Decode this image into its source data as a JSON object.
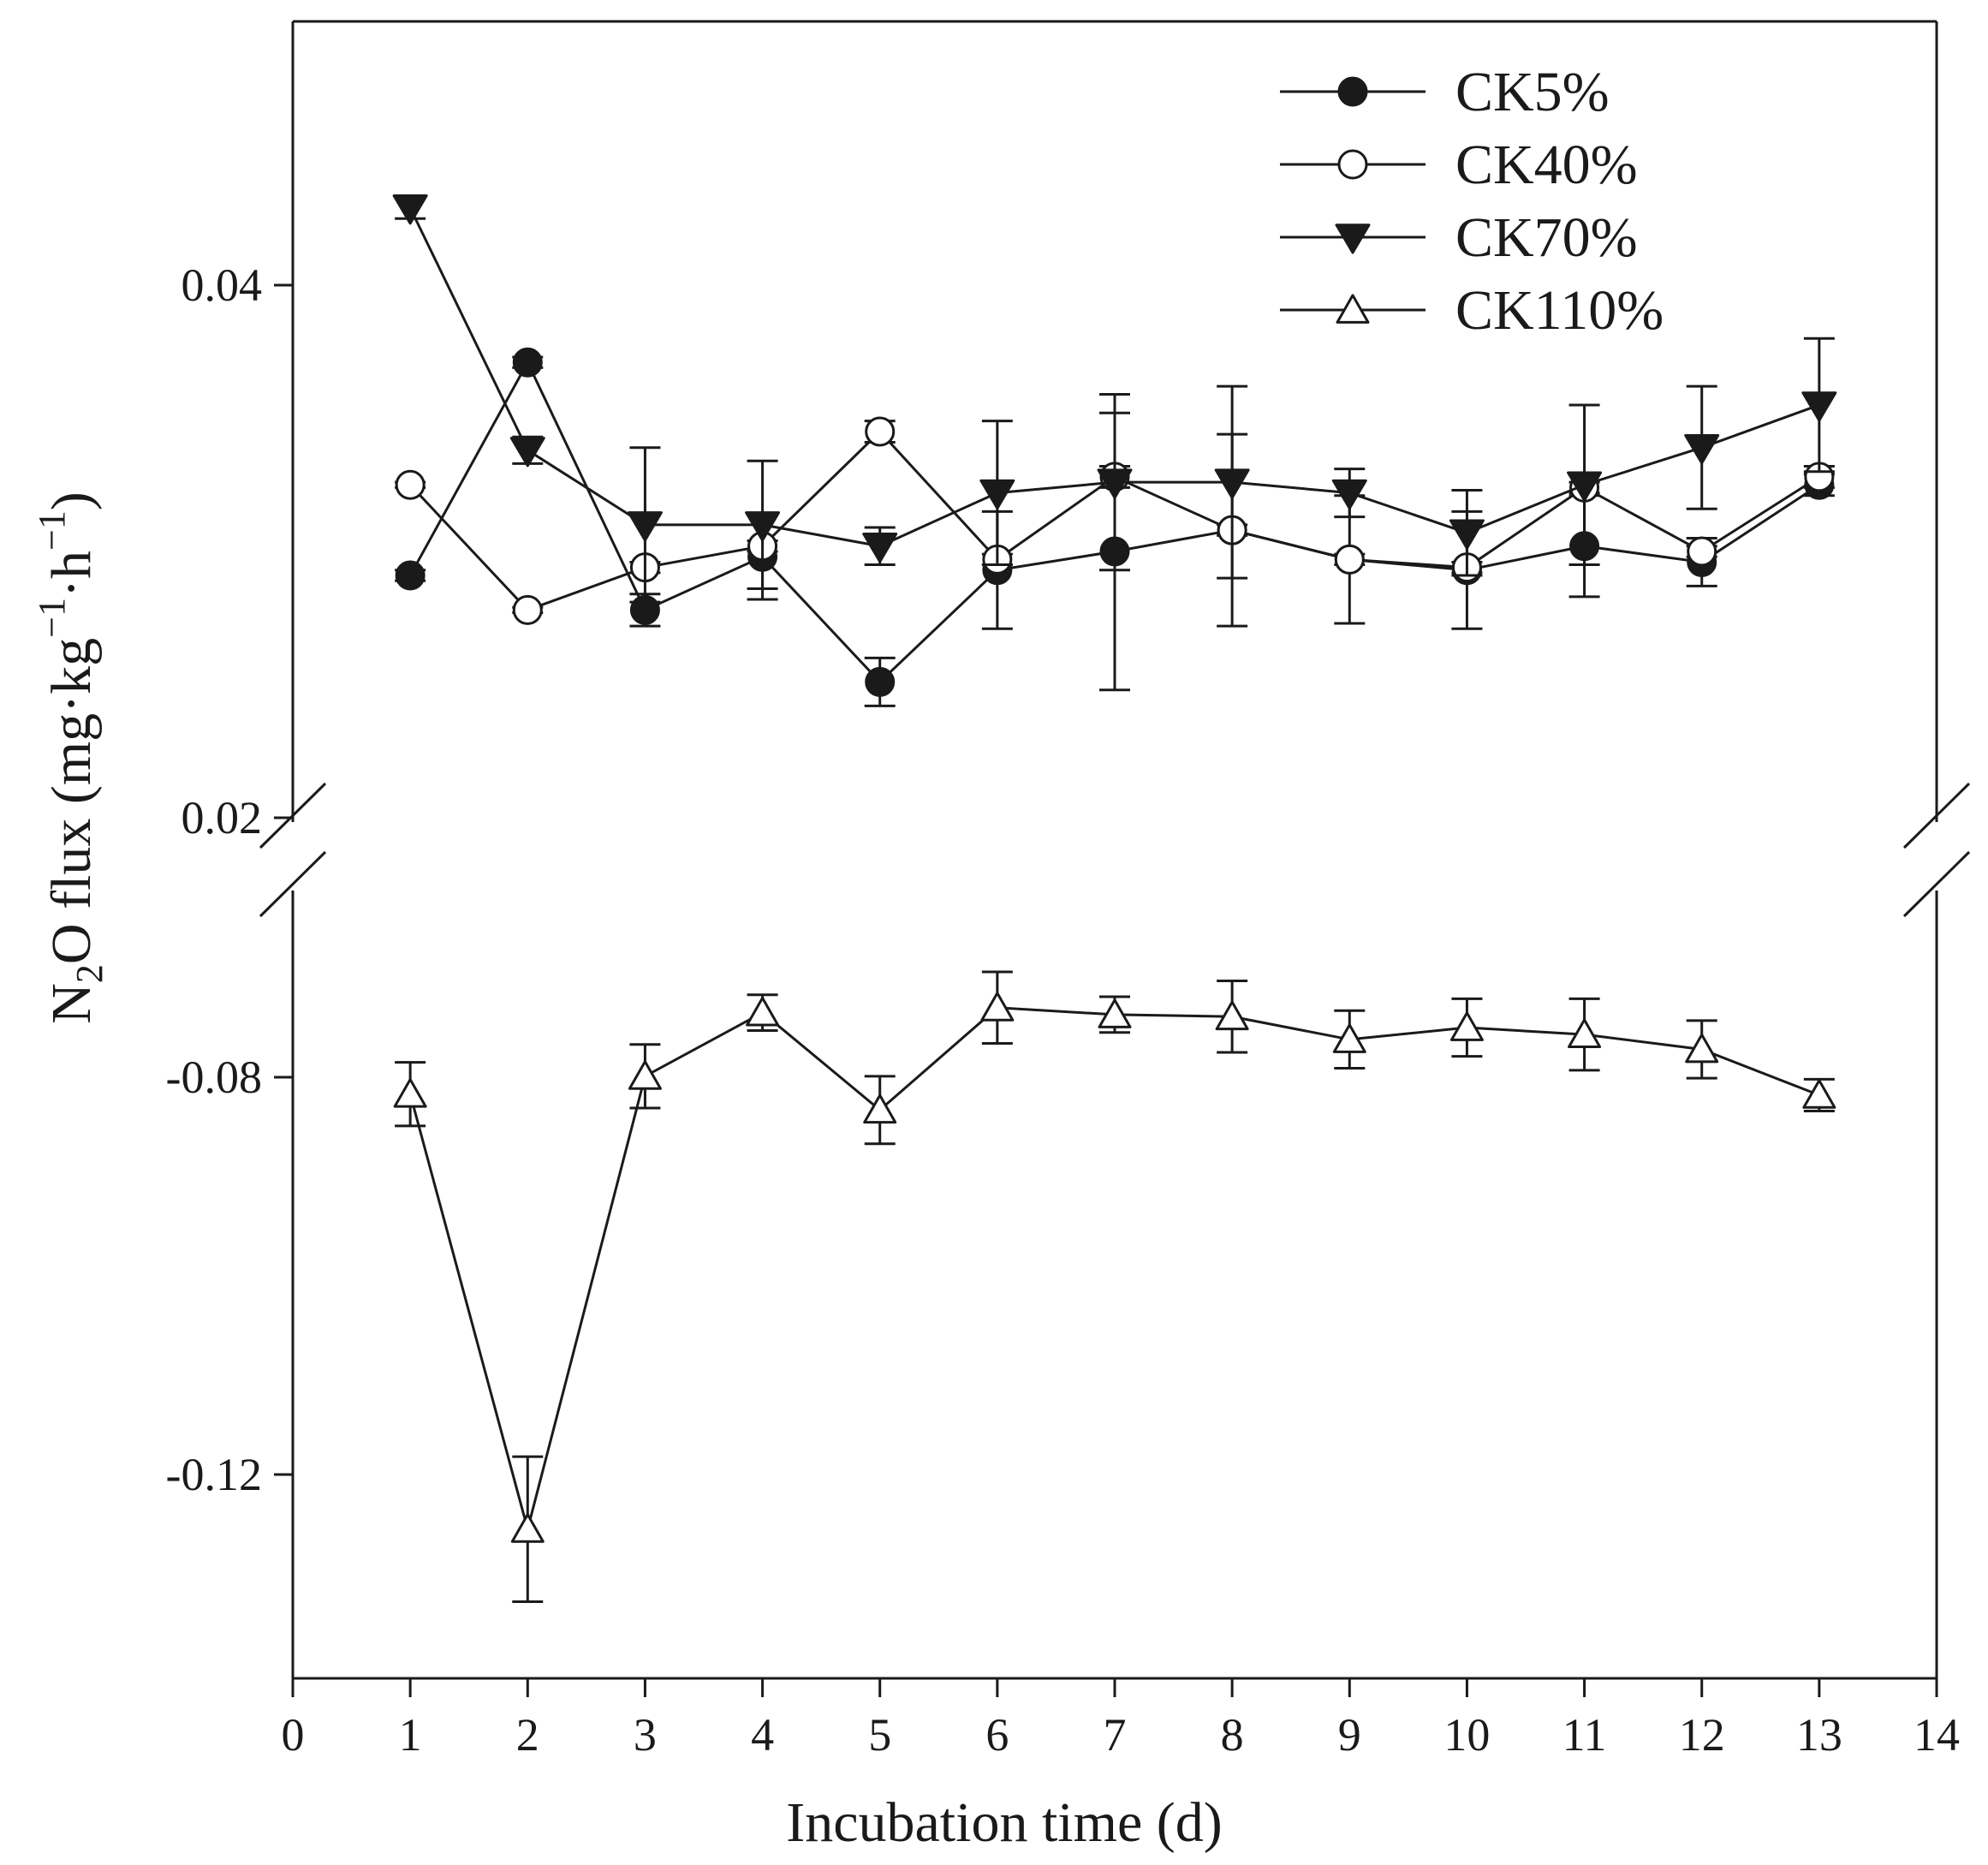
{
  "chart_data": {
    "type": "line",
    "xlabel": "Incubation time (d)",
    "ylabel": {
      "prefix": "N",
      "sub_2": "2",
      "mid": "O flux (mg·kg",
      "sup_a": "−1",
      "mid2": "·h",
      "sup_b": "−1",
      "suffix": ")"
    },
    "xlim": [
      0,
      14
    ],
    "x_ticks": [
      "0",
      "1",
      "2",
      "3",
      "4",
      "5",
      "6",
      "7",
      "8",
      "9",
      "10",
      "11",
      "12",
      "13",
      "14"
    ],
    "y_axis_broken": true,
    "upper_segment": {
      "ylim": [
        0.02,
        0.0445
      ],
      "ticks": [
        0.02,
        0.04
      ],
      "tick_labels": [
        "0.02",
        "0.04"
      ]
    },
    "lower_segment": {
      "ylim": [
        -0.135,
        -0.065
      ],
      "ticks": [
        -0.08,
        -0.12
      ],
      "tick_labels": [
        "-0.08",
        "-0.12"
      ]
    },
    "legend_position": "top-right",
    "x": [
      1,
      2,
      3,
      4,
      5,
      6,
      7,
      8,
      9,
      10,
      11,
      12,
      13
    ],
    "series": [
      {
        "name": "CK5%",
        "marker": "filled-circle",
        "segment": "upper",
        "values": [
          0.0291,
          0.0371,
          0.0278,
          0.0298,
          0.0251,
          0.0293,
          0.03,
          0.0308,
          0.0297,
          0.0293,
          0.0302,
          0.0296,
          0.0325
        ],
        "errors": [
          0.0002,
          0.0002,
          0.0006,
          0.0016,
          0.0009,
          0.0022,
          0.0052,
          0.0036,
          0.0024,
          0.0022,
          0.0019,
          0.0009,
          0.0004
        ]
      },
      {
        "name": "CK40%",
        "marker": "open-circle",
        "segment": "upper",
        "values": [
          0.0325,
          0.0278,
          0.0294,
          0.0302,
          0.0345,
          0.0297,
          0.0328,
          0.0308,
          0.0297,
          0.0294,
          0.0324,
          0.03,
          0.0328
        ],
        "errors": [
          0.0001,
          0.0001,
          0.0002,
          0.0002,
          0.0004,
          0.0002,
          0.0004,
          0.0002,
          0.0002,
          0.0002,
          0.0002,
          0.0002,
          0.0004
        ]
      },
      {
        "name": "CK70%",
        "marker": "filled-triangle-down",
        "segment": "upper",
        "values": [
          0.0429,
          0.0338,
          0.031,
          0.031,
          0.0302,
          0.0322,
          0.0326,
          0.0326,
          0.0322,
          0.0307,
          0.0325,
          0.0339,
          0.0355
        ],
        "errors": [
          0.0004,
          0.0005,
          0.0029,
          0.0024,
          0.0007,
          0.0027,
          0.0033,
          0.0036,
          0.0009,
          0.0016,
          0.003,
          0.0023,
          0.0025
        ]
      },
      {
        "name": "CK110%",
        "marker": "open-triangle-up",
        "segment": "lower",
        "values": [
          -0.0817,
          -0.1255,
          -0.0799,
          -0.0735,
          -0.0833,
          -0.073,
          -0.0737,
          -0.0739,
          -0.0762,
          -0.075,
          -0.0757,
          -0.0772,
          -0.0818
        ],
        "errors": [
          0.0032,
          0.0073,
          0.0032,
          0.0018,
          0.0034,
          0.0036,
          0.0018,
          0.0036,
          0.0029,
          0.0029,
          0.0036,
          0.0029,
          0.0016
        ]
      }
    ]
  }
}
